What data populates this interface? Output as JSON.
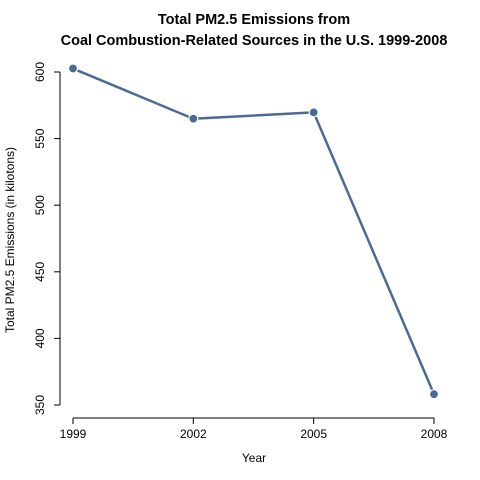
{
  "chart_data": {
    "type": "line",
    "title_lines": [
      "Total PM2.5 Emissions from",
      "Coal Combustion-Related Sources in the U.S. 1999-2008"
    ],
    "xlabel": "Year",
    "ylabel": "Total PM2.5 Emissions (in kilotons)",
    "x": [
      1999,
      2002,
      2005,
      2008
    ],
    "x_tick_labels": [
      "1999",
      "2002",
      "2005",
      "2008"
    ],
    "series": [
      {
        "values": [
          602.6,
          564.9,
          569.7,
          358.1
        ],
        "color": "#4a6b97"
      }
    ],
    "y_ticks": [
      350,
      400,
      450,
      500,
      550,
      600
    ],
    "y_tick_labels": [
      "350",
      "400",
      "450",
      "500",
      "550",
      "600"
    ],
    "xlim": [
      1999,
      2008
    ],
    "ylim": [
      350,
      610
    ],
    "grid": false,
    "legend": "none"
  }
}
